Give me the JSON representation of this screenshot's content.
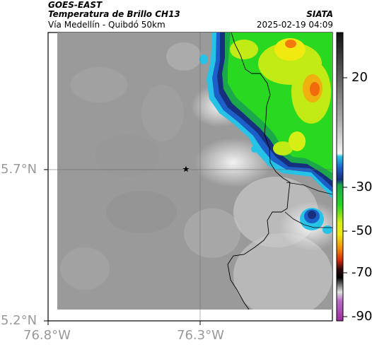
{
  "header": {
    "satellite": "GOES-EAST",
    "product": "Temperatura de Brillo CH13",
    "region": "Vía Medellín - Quibdó 50km",
    "organization": "SIATA",
    "timestamp": "2025-02-19 04:09"
  },
  "axes": {
    "lat_ticks": [
      "5.7°N",
      "5.2°N"
    ],
    "lon_ticks": [
      "76.8°W",
      "76.3°W"
    ]
  },
  "colorbar": {
    "labels": [
      "20",
      "-30",
      "-50",
      "-70",
      "-90"
    ]
  },
  "colors": {
    "background_gray": "#9a9a9a",
    "cold_blue": "#1a2a8a",
    "cyan": "#27c3e6",
    "green": "#16c01d",
    "yellow": "#f0ea10"
  }
}
